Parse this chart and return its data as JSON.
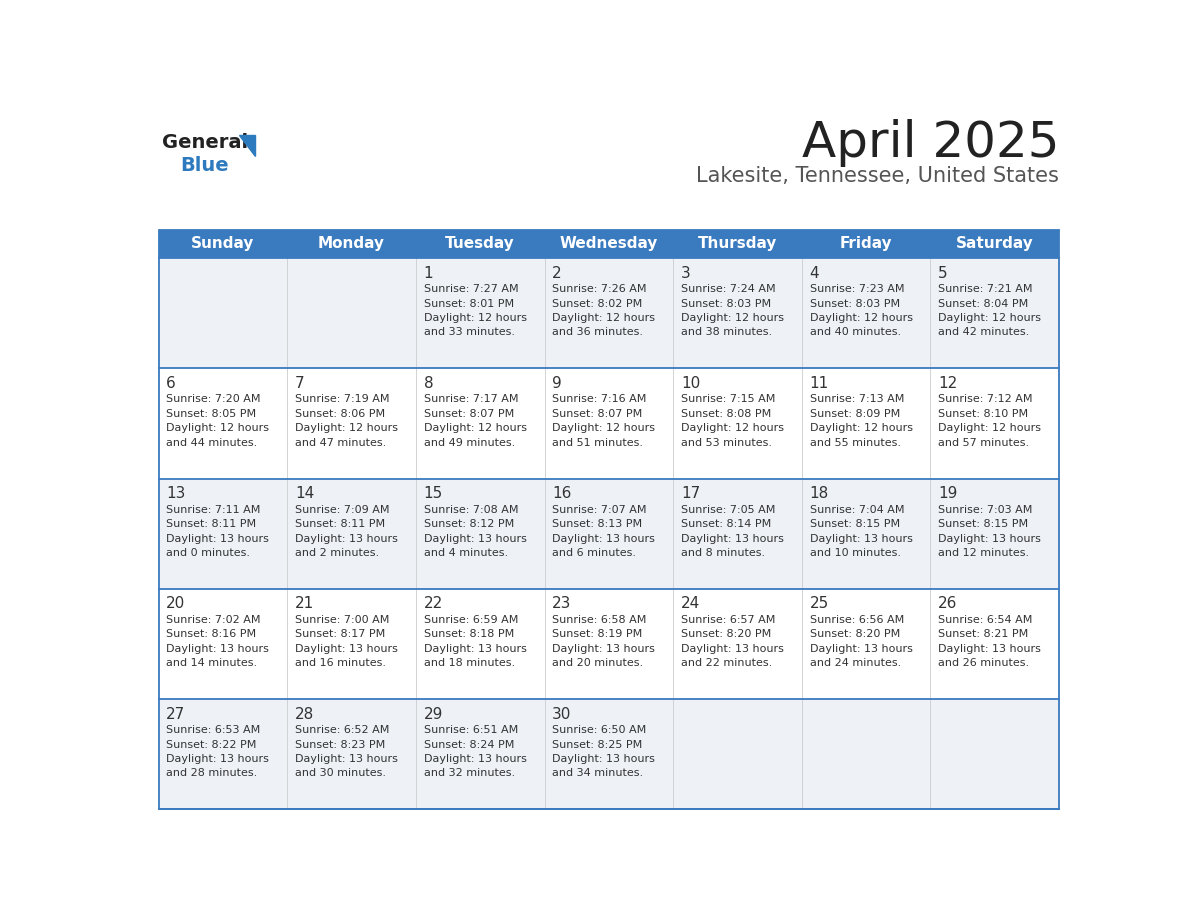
{
  "title": "April 2025",
  "subtitle": "Lakesite, Tennessee, United States",
  "header_color": "#3a7abf",
  "header_text_color": "#ffffff",
  "odd_row_bg": "#eef2f7",
  "even_row_bg": "#ffffff",
  "border_color": "#3a7abf",
  "separator_color": "#3a7abf",
  "day_headers": [
    "Sunday",
    "Monday",
    "Tuesday",
    "Wednesday",
    "Thursday",
    "Friday",
    "Saturday"
  ],
  "weeks": [
    [
      {
        "day": "",
        "info": ""
      },
      {
        "day": "",
        "info": ""
      },
      {
        "day": "1",
        "info": "Sunrise: 7:27 AM\nSunset: 8:01 PM\nDaylight: 12 hours\nand 33 minutes."
      },
      {
        "day": "2",
        "info": "Sunrise: 7:26 AM\nSunset: 8:02 PM\nDaylight: 12 hours\nand 36 minutes."
      },
      {
        "day": "3",
        "info": "Sunrise: 7:24 AM\nSunset: 8:03 PM\nDaylight: 12 hours\nand 38 minutes."
      },
      {
        "day": "4",
        "info": "Sunrise: 7:23 AM\nSunset: 8:03 PM\nDaylight: 12 hours\nand 40 minutes."
      },
      {
        "day": "5",
        "info": "Sunrise: 7:21 AM\nSunset: 8:04 PM\nDaylight: 12 hours\nand 42 minutes."
      }
    ],
    [
      {
        "day": "6",
        "info": "Sunrise: 7:20 AM\nSunset: 8:05 PM\nDaylight: 12 hours\nand 44 minutes."
      },
      {
        "day": "7",
        "info": "Sunrise: 7:19 AM\nSunset: 8:06 PM\nDaylight: 12 hours\nand 47 minutes."
      },
      {
        "day": "8",
        "info": "Sunrise: 7:17 AM\nSunset: 8:07 PM\nDaylight: 12 hours\nand 49 minutes."
      },
      {
        "day": "9",
        "info": "Sunrise: 7:16 AM\nSunset: 8:07 PM\nDaylight: 12 hours\nand 51 minutes."
      },
      {
        "day": "10",
        "info": "Sunrise: 7:15 AM\nSunset: 8:08 PM\nDaylight: 12 hours\nand 53 minutes."
      },
      {
        "day": "11",
        "info": "Sunrise: 7:13 AM\nSunset: 8:09 PM\nDaylight: 12 hours\nand 55 minutes."
      },
      {
        "day": "12",
        "info": "Sunrise: 7:12 AM\nSunset: 8:10 PM\nDaylight: 12 hours\nand 57 minutes."
      }
    ],
    [
      {
        "day": "13",
        "info": "Sunrise: 7:11 AM\nSunset: 8:11 PM\nDaylight: 13 hours\nand 0 minutes."
      },
      {
        "day": "14",
        "info": "Sunrise: 7:09 AM\nSunset: 8:11 PM\nDaylight: 13 hours\nand 2 minutes."
      },
      {
        "day": "15",
        "info": "Sunrise: 7:08 AM\nSunset: 8:12 PM\nDaylight: 13 hours\nand 4 minutes."
      },
      {
        "day": "16",
        "info": "Sunrise: 7:07 AM\nSunset: 8:13 PM\nDaylight: 13 hours\nand 6 minutes."
      },
      {
        "day": "17",
        "info": "Sunrise: 7:05 AM\nSunset: 8:14 PM\nDaylight: 13 hours\nand 8 minutes."
      },
      {
        "day": "18",
        "info": "Sunrise: 7:04 AM\nSunset: 8:15 PM\nDaylight: 13 hours\nand 10 minutes."
      },
      {
        "day": "19",
        "info": "Sunrise: 7:03 AM\nSunset: 8:15 PM\nDaylight: 13 hours\nand 12 minutes."
      }
    ],
    [
      {
        "day": "20",
        "info": "Sunrise: 7:02 AM\nSunset: 8:16 PM\nDaylight: 13 hours\nand 14 minutes."
      },
      {
        "day": "21",
        "info": "Sunrise: 7:00 AM\nSunset: 8:17 PM\nDaylight: 13 hours\nand 16 minutes."
      },
      {
        "day": "22",
        "info": "Sunrise: 6:59 AM\nSunset: 8:18 PM\nDaylight: 13 hours\nand 18 minutes."
      },
      {
        "day": "23",
        "info": "Sunrise: 6:58 AM\nSunset: 8:19 PM\nDaylight: 13 hours\nand 20 minutes."
      },
      {
        "day": "24",
        "info": "Sunrise: 6:57 AM\nSunset: 8:20 PM\nDaylight: 13 hours\nand 22 minutes."
      },
      {
        "day": "25",
        "info": "Sunrise: 6:56 AM\nSunset: 8:20 PM\nDaylight: 13 hours\nand 24 minutes."
      },
      {
        "day": "26",
        "info": "Sunrise: 6:54 AM\nSunset: 8:21 PM\nDaylight: 13 hours\nand 26 minutes."
      }
    ],
    [
      {
        "day": "27",
        "info": "Sunrise: 6:53 AM\nSunset: 8:22 PM\nDaylight: 13 hours\nand 28 minutes."
      },
      {
        "day": "28",
        "info": "Sunrise: 6:52 AM\nSunset: 8:23 PM\nDaylight: 13 hours\nand 30 minutes."
      },
      {
        "day": "29",
        "info": "Sunrise: 6:51 AM\nSunset: 8:24 PM\nDaylight: 13 hours\nand 32 minutes."
      },
      {
        "day": "30",
        "info": "Sunrise: 6:50 AM\nSunset: 8:25 PM\nDaylight: 13 hours\nand 34 minutes."
      },
      {
        "day": "",
        "info": ""
      },
      {
        "day": "",
        "info": ""
      },
      {
        "day": "",
        "info": ""
      }
    ]
  ],
  "logo_color": "#2e7abf",
  "logo_dark": "#222222",
  "title_color": "#222222",
  "subtitle_color": "#555555",
  "day_num_color": "#333333",
  "cell_text_color": "#333333"
}
